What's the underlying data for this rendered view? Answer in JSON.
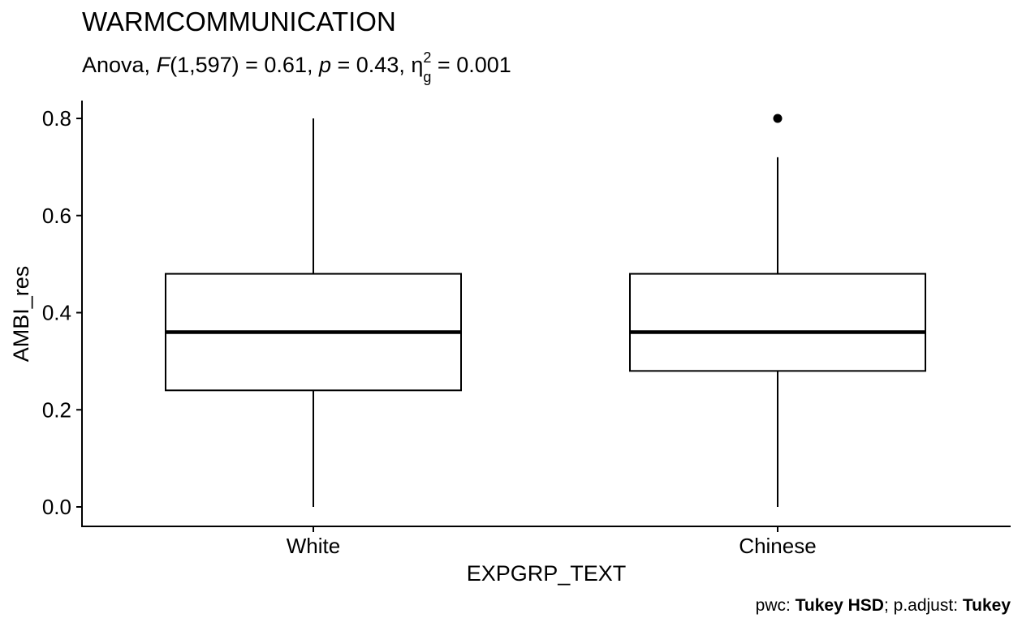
{
  "chart_data": {
    "type": "box",
    "title": "WARMCOMMUNICATION",
    "subtitle": {
      "test": "Anova,",
      "f_symbol": "F",
      "df": "(1,597)",
      "f_value": " = 0.61,",
      "p_symbol": "p",
      "p_value": " = 0.43,",
      "eta_symbol": "η",
      "eta_sub": "g",
      "eta_sup": "2",
      "eta_value": " = 0.001"
    },
    "xlabel": "EXPGRP_TEXT",
    "ylabel": "AMBI_res",
    "ylim": [
      -0.04,
      0.84
    ],
    "yticks": [
      0.0,
      0.2,
      0.4,
      0.6,
      0.8
    ],
    "ytick_labels": [
      "0.0",
      "0.2",
      "0.4",
      "0.6",
      "0.8"
    ],
    "categories": [
      "White",
      "Chinese"
    ],
    "boxes": [
      {
        "category": "White",
        "whisker_low": 0.0,
        "q1": 0.24,
        "median": 0.36,
        "q3": 0.48,
        "whisker_high": 0.8,
        "outliers": []
      },
      {
        "category": "Chinese",
        "whisker_low": 0.0,
        "q1": 0.28,
        "median": 0.36,
        "q3": 0.48,
        "whisker_high": 0.72,
        "outliers": [
          0.8
        ]
      }
    ],
    "caption": {
      "pwc_label": "pwc: ",
      "pwc_value": "Tukey HSD",
      "sep": "; p.adjust: ",
      "adjust_value": "Tukey"
    },
    "grid": false,
    "legend": "none"
  }
}
